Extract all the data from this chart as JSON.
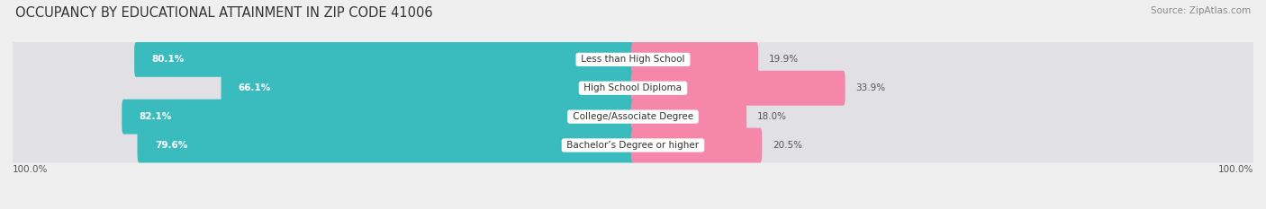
{
  "title": "OCCUPANCY BY EDUCATIONAL ATTAINMENT IN ZIP CODE 41006",
  "source": "Source: ZipAtlas.com",
  "categories": [
    "Less than High School",
    "High School Diploma",
    "College/Associate Degree",
    "Bachelor’s Degree or higher"
  ],
  "owner_values": [
    80.1,
    66.1,
    82.1,
    79.6
  ],
  "renter_values": [
    19.9,
    33.9,
    18.0,
    20.5
  ],
  "owner_color": "#3abcbf",
  "renter_color": "#f487aa",
  "bg_color": "#efefef",
  "bar_bg_color": "#e0e0e5",
  "title_fontsize": 10.5,
  "source_fontsize": 7.5,
  "value_fontsize": 7.5,
  "cat_fontsize": 7.5,
  "legend_fontsize": 8,
  "bar_height": 0.62,
  "axis_label": "100.0%"
}
